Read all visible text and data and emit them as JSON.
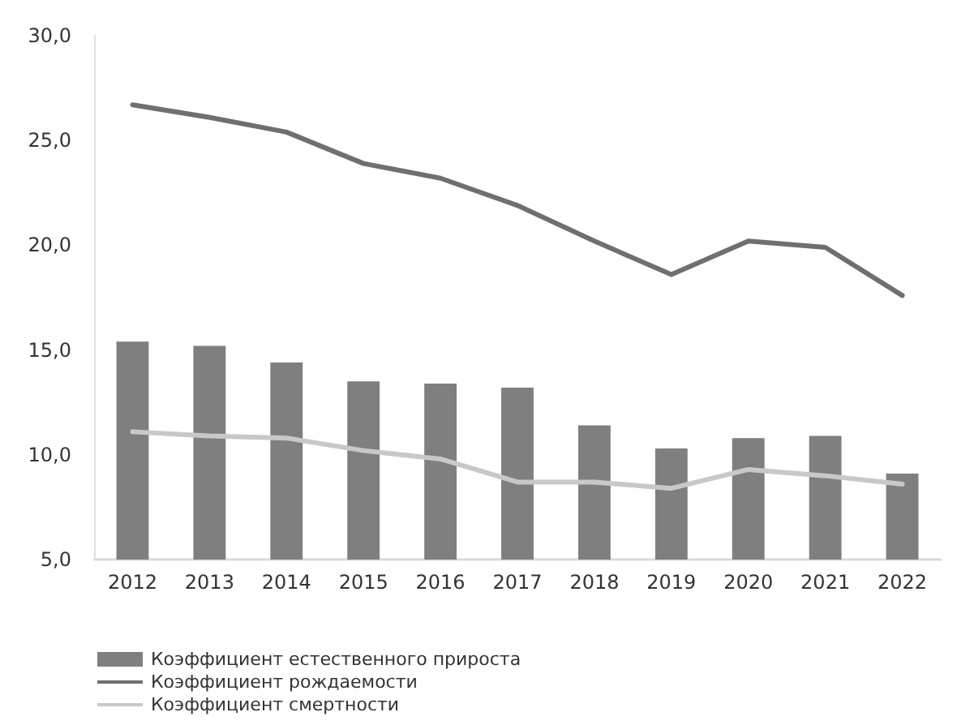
{
  "chart_data": {
    "type": "bar",
    "categories": [
      "2012",
      "2013",
      "2014",
      "2015",
      "2016",
      "2017",
      "2018",
      "2019",
      "2020",
      "2021",
      "2022"
    ],
    "series": [
      {
        "name": "Коэффициент естественного прироста",
        "color": "#7f7f7f",
        "values": [
          15.4,
          15.2,
          14.4,
          13.5,
          13.4,
          13.2,
          11.4,
          10.3,
          10.8,
          10.9,
          9.1
        ]
      },
      {
        "name": "Коэффициент рождаемости",
        "type": "line",
        "color": "#6f6f6f",
        "values": [
          26.7,
          26.1,
          25.4,
          23.9,
          23.2,
          21.9,
          20.2,
          18.6,
          20.2,
          19.9,
          17.6
        ]
      },
      {
        "name": "Коэффициент смертности",
        "type": "line",
        "color": "#c8c8c8",
        "values": [
          11.1,
          10.9,
          10.8,
          10.2,
          9.8,
          8.7,
          8.7,
          8.4,
          9.3,
          9.0,
          8.6
        ]
      }
    ],
    "ylim": [
      5,
      30
    ],
    "yticks": [
      {
        "value": 5,
        "label": "5,0"
      },
      {
        "value": 10,
        "label": "10,0"
      },
      {
        "value": 15,
        "label": "15,0"
      },
      {
        "value": 20,
        "label": "20,0"
      },
      {
        "value": 25,
        "label": "25,0"
      },
      {
        "value": 30,
        "label": "30,0"
      }
    ],
    "grid": false,
    "legend": "bottom left",
    "marker": "none",
    "line_style": "solid"
  }
}
